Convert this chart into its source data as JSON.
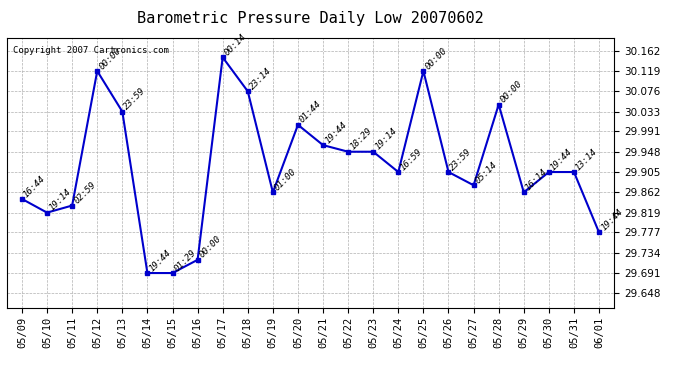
{
  "title": "Barometric Pressure Daily Low 20070602",
  "copyright": "Copyright 2007 Cartronics.com",
  "x_labels": [
    "05/09",
    "05/10",
    "05/11",
    "05/12",
    "05/13",
    "05/14",
    "05/15",
    "05/16",
    "05/17",
    "05/18",
    "05/19",
    "05/20",
    "05/21",
    "05/22",
    "05/23",
    "05/24",
    "05/25",
    "05/26",
    "05/27",
    "05/28",
    "05/29",
    "05/30",
    "05/31",
    "06/01"
  ],
  "y_values": [
    29.848,
    29.819,
    29.834,
    30.119,
    30.033,
    29.691,
    29.691,
    29.719,
    30.148,
    30.076,
    29.862,
    30.005,
    29.962,
    29.948,
    29.948,
    29.905,
    30.119,
    29.905,
    29.877,
    30.048,
    29.862,
    29.905,
    29.905,
    29.777
  ],
  "point_labels": [
    "16:44",
    "19:14",
    "02:59",
    "00:00",
    "23:59",
    "19:44",
    "01:29",
    "00:00",
    "00:14",
    "23:14",
    "01:00",
    "01:44",
    "19:44",
    "18:29",
    "19:14",
    "16:59",
    "00:00",
    "23:59",
    "05:14",
    "00:00",
    "16:14",
    "19:44",
    "13:14",
    "19:44"
  ],
  "y_ticks": [
    29.648,
    29.691,
    29.734,
    29.777,
    29.819,
    29.862,
    29.905,
    29.948,
    29.991,
    30.033,
    30.076,
    30.119,
    30.162
  ],
  "ylim": [
    29.618,
    30.19
  ],
  "line_color": "#0000cc",
  "marker_color": "#0000cc",
  "bg_color": "#ffffff",
  "grid_color": "#b0b0b0",
  "title_fontsize": 11,
  "tick_fontsize": 7.5,
  "point_label_fontsize": 6.5,
  "copyright_fontsize": 6.5
}
